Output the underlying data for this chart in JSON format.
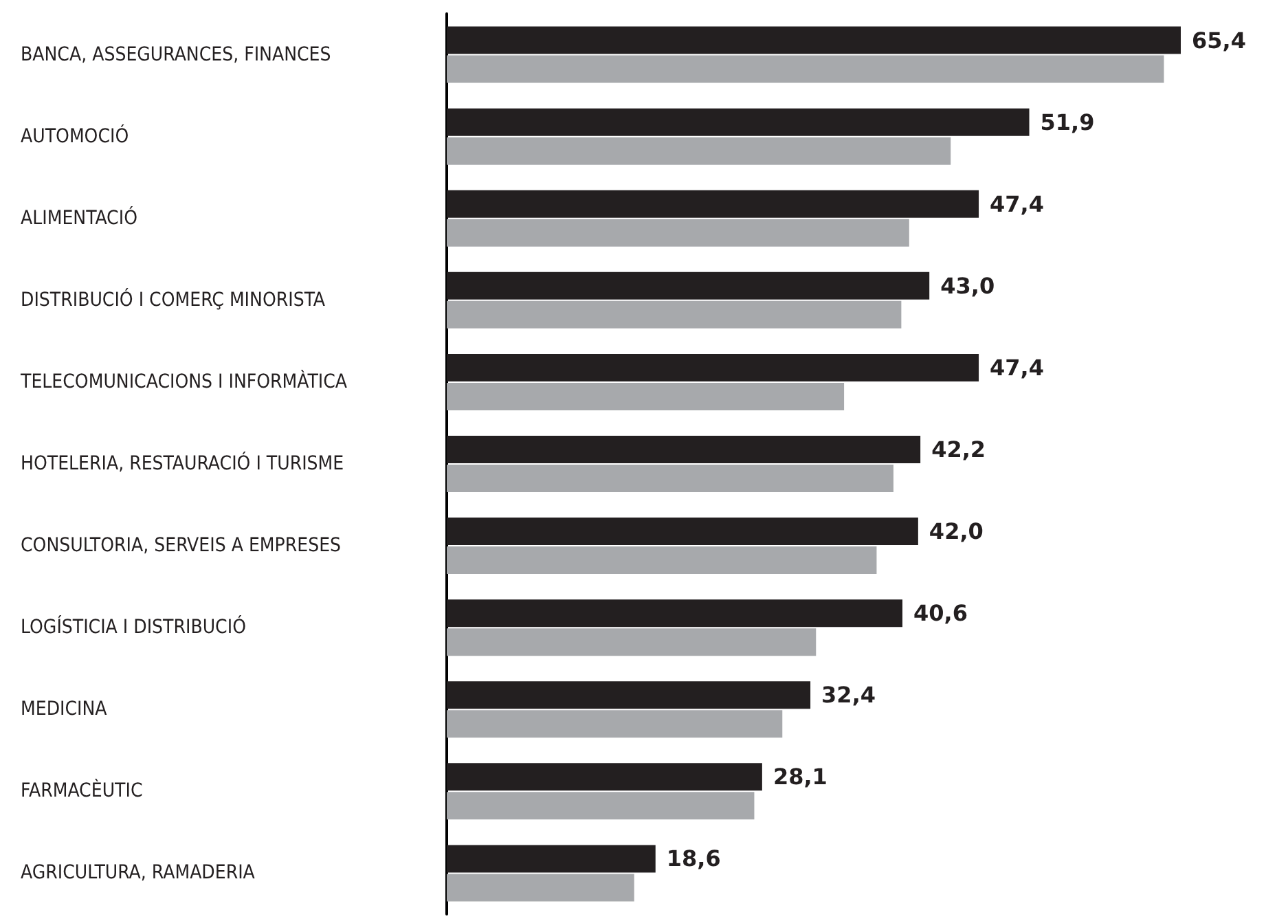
{
  "chart_data": {
    "type": "bar",
    "orientation": "horizontal",
    "categories": [
      "BANCA, ASSEGURANCES, FINANCES",
      "AUTOMOCIÓ",
      "ALIMENTACIÓ",
      "DISTRIBUCIÓ I COMERÇ MINORISTA",
      "TELECOMUNICACIONS I INFORMÀTICA",
      "HOTELERIA, RESTAURACIÓ I TURISME",
      "CONSULTORIA, SERVEIS A EMPRESES",
      "LOGÍSTICIA I DISTRIBUCIÓ",
      "MEDICINA",
      "FARMACÈUTIC",
      "AGRICULTURA, RAMADERIA"
    ],
    "series": [
      {
        "color": "#231f20",
        "values": [
          65.4,
          51.9,
          47.4,
          43.0,
          47.4,
          42.2,
          42.0,
          40.6,
          32.4,
          28.1,
          18.6
        ],
        "value_labels": [
          "65,4",
          "51,9",
          "47,4",
          "43,0",
          "47,4",
          "42,2",
          "42,0",
          "40,6",
          "32,4",
          "28,1",
          "18,6"
        ]
      },
      {
        "color": "#a7a9ac",
        "values": [
          63.9,
          44.9,
          41.2,
          40.5,
          35.4,
          39.8,
          38.3,
          32.9,
          29.9,
          27.4,
          16.7
        ]
      }
    ],
    "tick_labels": "y"
  }
}
